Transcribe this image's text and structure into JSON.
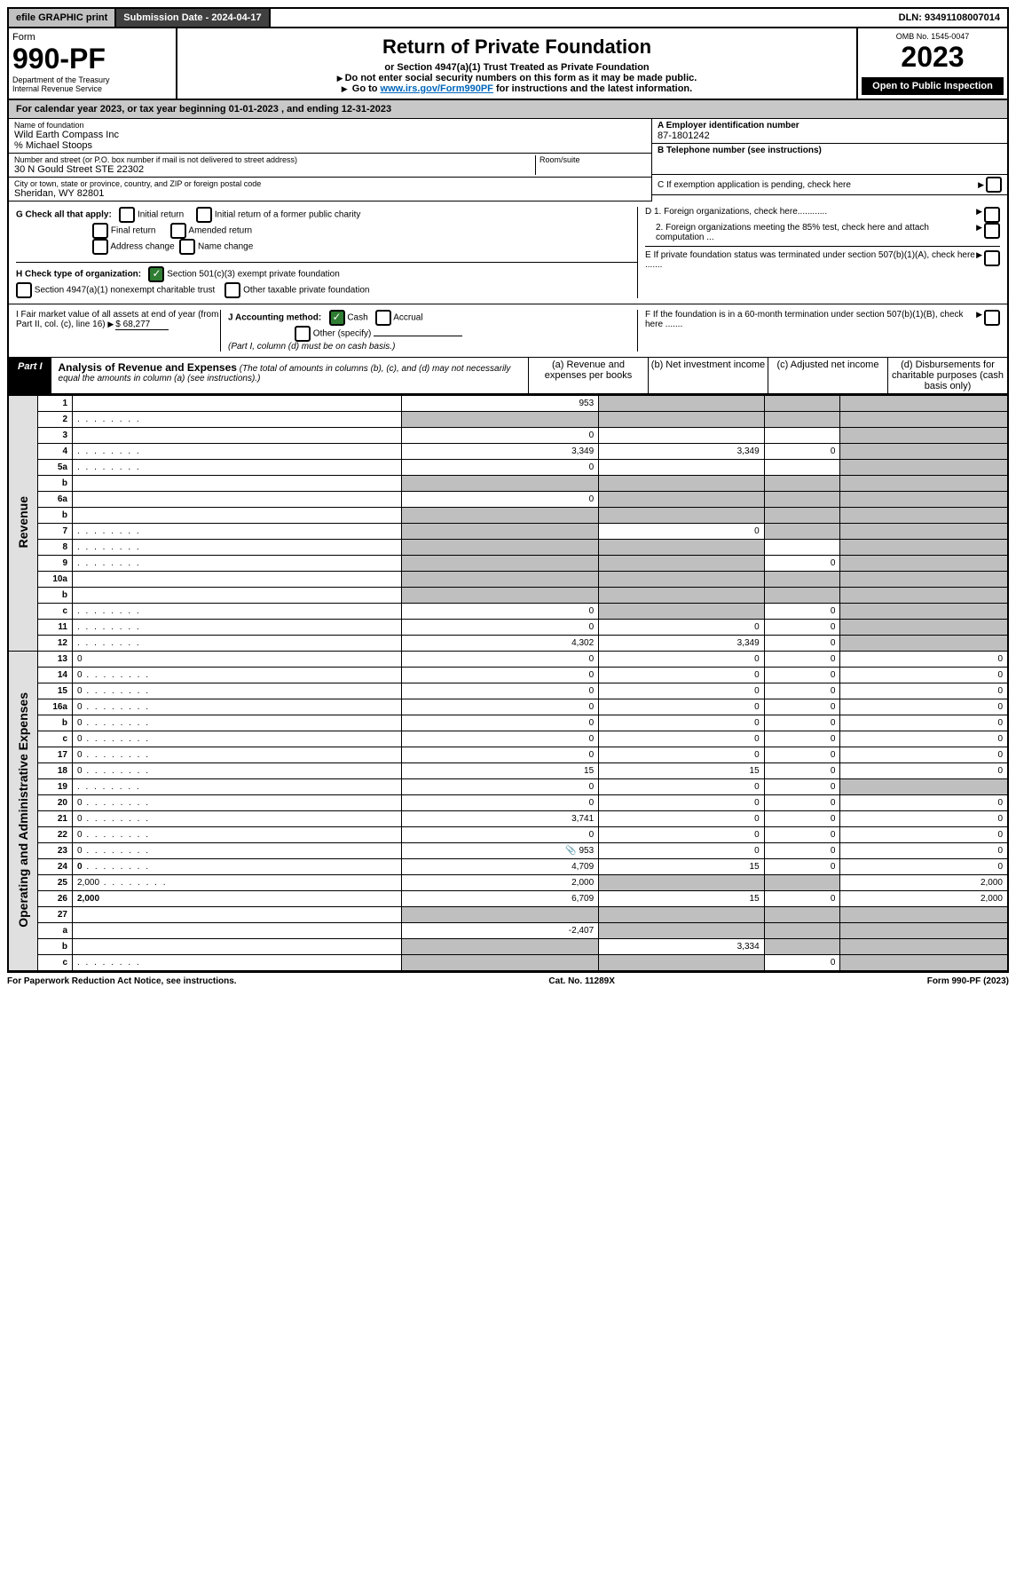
{
  "topbar": {
    "efile": "efile GRAPHIC print",
    "submission_label": "Submission Date - 2024-04-17",
    "dln": "DLN: 93491108007014"
  },
  "header": {
    "form_word": "Form",
    "form_no": "990-PF",
    "dept": "Department of the Treasury",
    "irs": "Internal Revenue Service",
    "title": "Return of Private Foundation",
    "subtitle": "or Section 4947(a)(1) Trust Treated as Private Foundation",
    "warn1": "Do not enter social security numbers on this form as it may be made public.",
    "warn2_prefix": "Go to ",
    "warn2_link": "www.irs.gov/Form990PF",
    "warn2_suffix": " for instructions and the latest information.",
    "omb": "OMB No. 1545-0047",
    "year": "2023",
    "open": "Open to Public Inspection"
  },
  "cal_year": "For calendar year 2023, or tax year beginning 01-01-2023          , and ending 12-31-2023",
  "foundation": {
    "name_label": "Name of foundation",
    "name": "Wild Earth Compass Inc",
    "care_of": "% Michael Stoops",
    "addr_label": "Number and street (or P.O. box number if mail is not delivered to street address)",
    "addr": "30 N Gould Street STE 22302",
    "room_label": "Room/suite",
    "city_label": "City or town, state or province, country, and ZIP or foreign postal code",
    "city": "Sheridan, WY  82801"
  },
  "right_info": {
    "a_label": "A Employer identification number",
    "a_val": "87-1801242",
    "b_label": "B Telephone number (see instructions)",
    "c_label": "C If exemption application is pending, check here",
    "d1": "D 1. Foreign organizations, check here............",
    "d2": "2. Foreign organizations meeting the 85% test, check here and attach computation ...",
    "e": "E  If private foundation status was terminated under section 507(b)(1)(A), check here .......",
    "f": "F  If the foundation is in a 60-month termination under section 507(b)(1)(B), check here ......."
  },
  "g": {
    "label": "G Check all that apply:",
    "opts": [
      "Initial return",
      "Final return",
      "Address change",
      "Initial return of a former public charity",
      "Amended return",
      "Name change"
    ]
  },
  "h": {
    "label": "H Check type of organization:",
    "opt1": "Section 501(c)(3) exempt private foundation",
    "opt2": "Section 4947(a)(1) nonexempt charitable trust",
    "opt3": "Other taxable private foundation"
  },
  "i": {
    "label": "I Fair market value of all assets at end of year (from Part II, col. (c), line 16)",
    "value": "$  68,277"
  },
  "j": {
    "label": "J Accounting method:",
    "cash": "Cash",
    "accrual": "Accrual",
    "other": "Other (specify)",
    "note": "(Part I, column (d) must be on cash basis.)"
  },
  "part1": {
    "label": "Part I",
    "title": "Analysis of Revenue and Expenses",
    "sub": "(The total of amounts in columns (b), (c), and (d) may not necessarily equal the amounts in column (a) (see instructions).)",
    "col_a": "(a)   Revenue and expenses per books",
    "col_b": "(b)   Net investment income",
    "col_c": "(c)   Adjusted net income",
    "col_d": "(d)   Disbursements for charitable purposes (cash basis only)"
  },
  "side_labels": {
    "rev": "Revenue",
    "exp": "Operating and Administrative Expenses"
  },
  "rows": [
    {
      "n": "1",
      "d": "",
      "a": "953",
      "b": "",
      "c": "",
      "grey": [
        "b",
        "c",
        "d"
      ]
    },
    {
      "n": "2",
      "d": "",
      "a": "",
      "b": "",
      "c": "",
      "grey": [
        "a",
        "b",
        "c",
        "d"
      ],
      "dots": true
    },
    {
      "n": "3",
      "d": "",
      "a": "0",
      "b": "",
      "c": "",
      "grey": [
        "d"
      ]
    },
    {
      "n": "4",
      "d": "",
      "a": "3,349",
      "b": "3,349",
      "c": "0",
      "grey": [
        "d"
      ],
      "dots": true
    },
    {
      "n": "5a",
      "d": "",
      "a": "0",
      "b": "",
      "c": "",
      "grey": [
        "d"
      ],
      "dots": true
    },
    {
      "n": "b",
      "d": "",
      "a": "",
      "b": "",
      "c": "",
      "grey": [
        "a",
        "b",
        "c",
        "d"
      ]
    },
    {
      "n": "6a",
      "d": "",
      "a": "0",
      "b": "",
      "c": "",
      "grey": [
        "b",
        "c",
        "d"
      ]
    },
    {
      "n": "b",
      "d": "",
      "a": "",
      "b": "",
      "c": "",
      "grey": [
        "a",
        "b",
        "c",
        "d"
      ]
    },
    {
      "n": "7",
      "d": "",
      "a": "",
      "b": "0",
      "c": "",
      "grey": [
        "a",
        "c",
        "d"
      ],
      "dots": true
    },
    {
      "n": "8",
      "d": "",
      "a": "",
      "b": "",
      "c": "",
      "grey": [
        "a",
        "b",
        "d"
      ],
      "dots": true
    },
    {
      "n": "9",
      "d": "",
      "a": "",
      "b": "",
      "c": "0",
      "grey": [
        "a",
        "b",
        "d"
      ],
      "dots": true
    },
    {
      "n": "10a",
      "d": "",
      "a": "",
      "b": "",
      "c": "",
      "grey": [
        "a",
        "b",
        "c",
        "d"
      ]
    },
    {
      "n": "b",
      "d": "",
      "a": "",
      "b": "",
      "c": "",
      "grey": [
        "a",
        "b",
        "c",
        "d"
      ]
    },
    {
      "n": "c",
      "d": "",
      "a": "0",
      "b": "",
      "c": "0",
      "grey": [
        "b",
        "d"
      ],
      "dots": true
    },
    {
      "n": "11",
      "d": "",
      "a": "0",
      "b": "0",
      "c": "0",
      "grey": [
        "d"
      ],
      "dots": true
    },
    {
      "n": "12",
      "d": "",
      "a": "4,302",
      "b": "3,349",
      "c": "0",
      "grey": [
        "d"
      ],
      "bold": true,
      "dots": true
    }
  ],
  "exp_rows": [
    {
      "n": "13",
      "d": "0",
      "a": "0",
      "b": "0",
      "c": "0"
    },
    {
      "n": "14",
      "d": "0",
      "a": "0",
      "b": "0",
      "c": "0",
      "dots": true
    },
    {
      "n": "15",
      "d": "0",
      "a": "0",
      "b": "0",
      "c": "0",
      "dots": true
    },
    {
      "n": "16a",
      "d": "0",
      "a": "0",
      "b": "0",
      "c": "0",
      "dots": true
    },
    {
      "n": "b",
      "d": "0",
      "a": "0",
      "b": "0",
      "c": "0",
      "dots": true
    },
    {
      "n": "c",
      "d": "0",
      "a": "0",
      "b": "0",
      "c": "0",
      "dots": true
    },
    {
      "n": "17",
      "d": "0",
      "a": "0",
      "b": "0",
      "c": "0",
      "dots": true
    },
    {
      "n": "18",
      "d": "0",
      "a": "15",
      "b": "15",
      "c": "0",
      "dots": true
    },
    {
      "n": "19",
      "d": "",
      "a": "0",
      "b": "0",
      "c": "0",
      "grey": [
        "d"
      ],
      "dots": true
    },
    {
      "n": "20",
      "d": "0",
      "a": "0",
      "b": "0",
      "c": "0",
      "dots": true
    },
    {
      "n": "21",
      "d": "0",
      "a": "3,741",
      "b": "0",
      "c": "0",
      "dots": true
    },
    {
      "n": "22",
      "d": "0",
      "a": "0",
      "b": "0",
      "c": "0",
      "dots": true
    },
    {
      "n": "23",
      "d": "0",
      "a": "953",
      "b": "0",
      "c": "0",
      "icon": true,
      "dots": true
    },
    {
      "n": "24",
      "d": "0",
      "a": "4,709",
      "b": "15",
      "c": "0",
      "bold": true,
      "dots": true
    },
    {
      "n": "25",
      "d": "2,000",
      "a": "2,000",
      "b": "",
      "c": "",
      "grey": [
        "b",
        "c"
      ],
      "dots": true
    },
    {
      "n": "26",
      "d": "2,000",
      "a": "6,709",
      "b": "15",
      "c": "0",
      "bold": true
    },
    {
      "n": "27",
      "d": "",
      "a": "",
      "b": "",
      "c": "",
      "grey": [
        "a",
        "b",
        "c",
        "d"
      ]
    },
    {
      "n": "a",
      "d": "",
      "a": "-2,407",
      "b": "",
      "c": "",
      "grey": [
        "b",
        "c",
        "d"
      ],
      "bold": true
    },
    {
      "n": "b",
      "d": "",
      "a": "",
      "b": "3,334",
      "c": "",
      "grey": [
        "a",
        "c",
        "d"
      ],
      "bold": true
    },
    {
      "n": "c",
      "d": "",
      "a": "",
      "b": "",
      "c": "0",
      "grey": [
        "a",
        "b",
        "d"
      ],
      "bold": true,
      "dots": true
    }
  ],
  "footer": {
    "left": "For Paperwork Reduction Act Notice, see instructions.",
    "center": "Cat. No. 11289X",
    "right": "Form 990-PF (2023)"
  }
}
